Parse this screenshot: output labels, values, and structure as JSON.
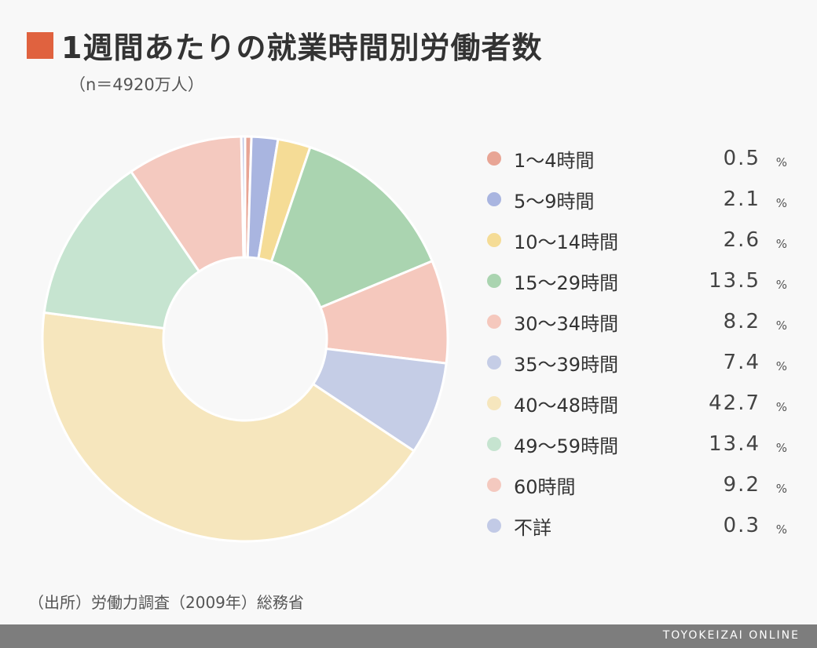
{
  "header": {
    "title": "1週間あたりの就業時間別労働者数",
    "subtitle": "（n＝4920万人）"
  },
  "chart_data": {
    "type": "pie",
    "donut": true,
    "title": "1週間あたりの就業時間別労働者数",
    "categories": [
      "1〜4時間",
      "5〜9時間",
      "10〜14時間",
      "15〜29時間",
      "30〜34時間",
      "35〜39時間",
      "40〜48時間",
      "49〜59時間",
      "60時間",
      "不詳"
    ],
    "values": [
      0.5,
      2.1,
      2.6,
      13.5,
      8.2,
      7.4,
      42.7,
      13.4,
      9.2,
      0.3
    ],
    "value_labels": [
      "0.5",
      "2.1",
      "2.6",
      "13.5",
      "8.2",
      "7.4",
      "42.7",
      "13.4",
      "9.2",
      "0.3"
    ],
    "unit": "%",
    "colors": [
      "#e8a595",
      "#a9b5e0",
      "#f5dc96",
      "#aad4b0",
      "#f5c8bd",
      "#c5cde6",
      "#f6e6bd",
      "#c6e4d0",
      "#f4c9bf",
      "#c2cae6"
    ],
    "legend_position": "right"
  },
  "source": "（出所）労働力調査（2009年）総務省",
  "footer": {
    "brand": "TOYOKEIZAI ONLINE",
    "background": "#7d7d7d"
  },
  "accent_color": "#e0623f"
}
